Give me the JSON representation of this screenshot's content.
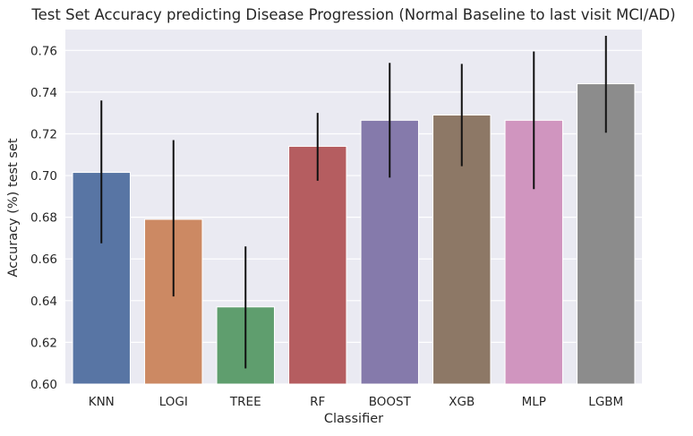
{
  "chart_data": {
    "type": "bar",
    "title": "Test Set Accuracy predicting Disease Progression (Normal Baseline to last visit MCI/AD)",
    "xlabel": "Classifier",
    "ylabel": "Accuracy (%) test set",
    "categories": [
      "KNN",
      "LOGI",
      "TREE",
      "RF",
      "BOOST",
      "XGB",
      "MLP",
      "LGBM"
    ],
    "values": [
      0.7015,
      0.679,
      0.637,
      0.714,
      0.7265,
      0.729,
      0.7265,
      0.744
    ],
    "error_low": [
      0.6675,
      0.642,
      0.6075,
      0.6975,
      0.699,
      0.7045,
      0.6935,
      0.7205
    ],
    "error_high": [
      0.736,
      0.717,
      0.666,
      0.73,
      0.754,
      0.7535,
      0.7595,
      0.767
    ],
    "colors": [
      "#5875a4",
      "#cc8963",
      "#5f9e6e",
      "#b55d60",
      "#857aab",
      "#8d7866",
      "#d095bf",
      "#8c8c8c"
    ],
    "ylim": [
      0.6,
      0.77
    ],
    "yticks": [
      "0.60",
      "0.62",
      "0.64",
      "0.66",
      "0.68",
      "0.70",
      "0.72",
      "0.74",
      "0.76"
    ],
    "grid": true,
    "background": "#eaeaf2"
  }
}
